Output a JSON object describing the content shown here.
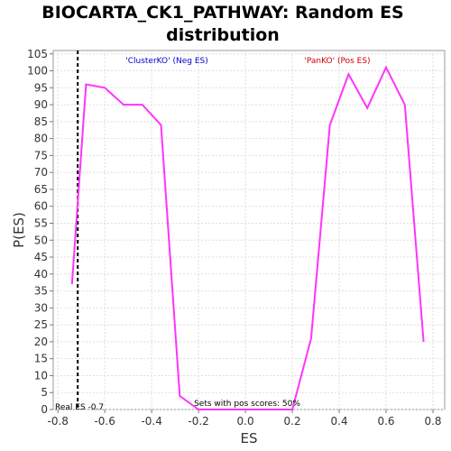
{
  "chart_data": {
    "type": "line",
    "title_line1": "BIOCARTA_CK1_PATHWAY: Random ES",
    "title_line2": "distribution",
    "xlabel": "ES",
    "ylabel": "P(ES)",
    "xlim": [
      -0.82,
      0.85
    ],
    "ylim": [
      0,
      106
    ],
    "xticks": [
      -0.8,
      -0.6,
      -0.4,
      -0.2,
      0.0,
      0.2,
      0.4,
      0.6,
      0.8
    ],
    "yticks": [
      0,
      5,
      10,
      15,
      20,
      25,
      30,
      35,
      40,
      45,
      50,
      55,
      60,
      65,
      70,
      75,
      80,
      85,
      90,
      95,
      100,
      105
    ],
    "grid": true,
    "series": [
      {
        "color": "#ff33ff",
        "x": [
          -0.74,
          -0.68,
          -0.6,
          -0.52,
          -0.44,
          -0.36,
          -0.28,
          -0.2,
          -0.12,
          -0.04,
          0.04,
          0.12,
          0.2,
          0.28,
          0.36,
          0.44,
          0.52,
          0.6,
          0.68,
          0.76
        ],
        "y": [
          37,
          96,
          95,
          90,
          90,
          84,
          4,
          0,
          0,
          0,
          0,
          0,
          0,
          21,
          84,
          99,
          89,
          101,
          90,
          20
        ]
      }
    ],
    "real_es": -0.7,
    "annotations": {
      "neg_label": "'ClusterKO' (Neg ES)",
      "neg_color": "#0000cc",
      "pos_label": "'PanKO' (Pos ES)",
      "pos_color": "#cc0000",
      "real_es_label": "Real ES -0.7",
      "pos_scores_label": "Sets with pos scores: 50%"
    }
  }
}
